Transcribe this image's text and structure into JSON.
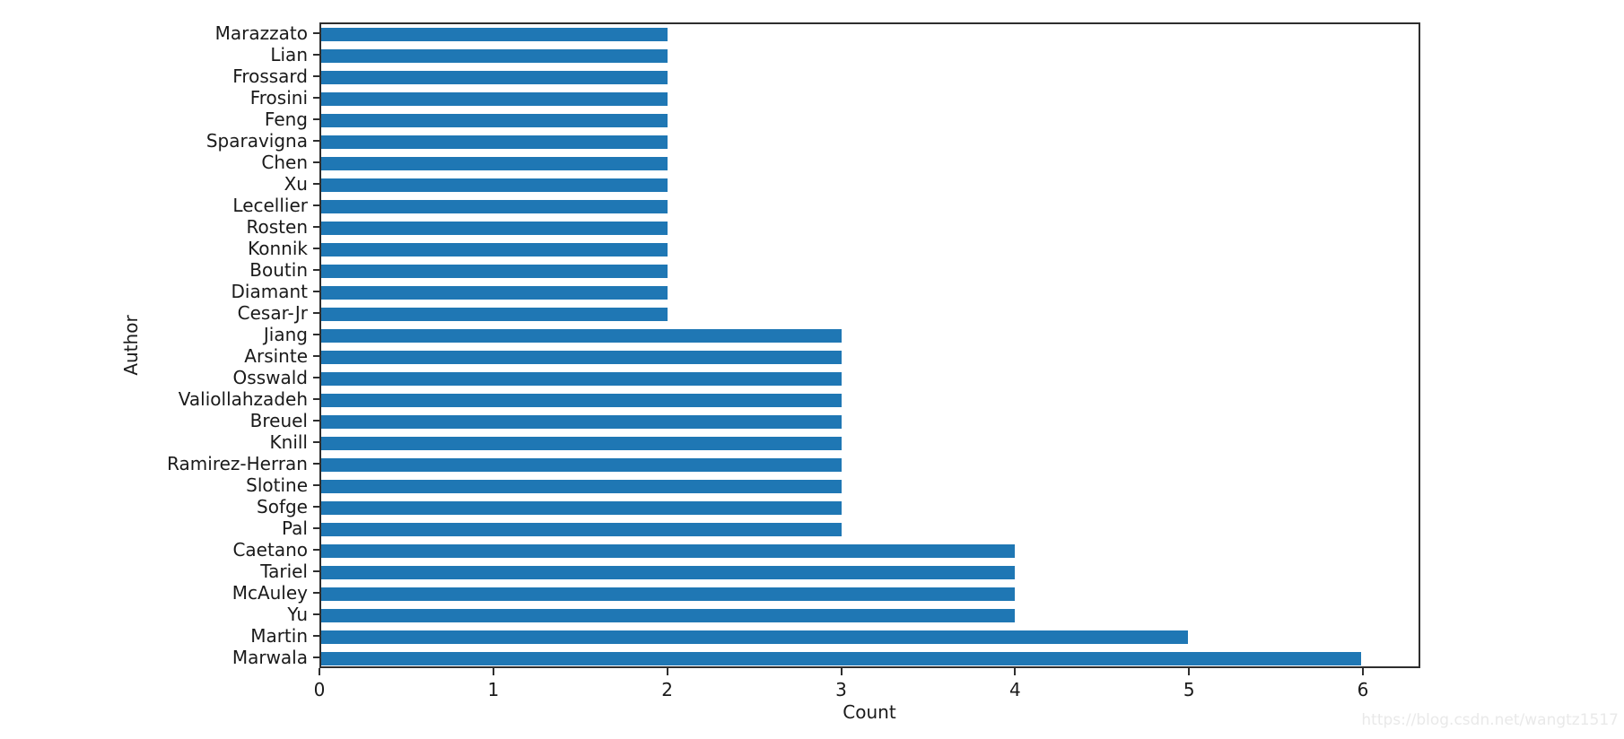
{
  "figure": {
    "background": "#ffffff",
    "watermark": "https://blog.csdn.net/wangtz1517"
  },
  "chart_data": {
    "type": "bar",
    "orientation": "horizontal",
    "title": "",
    "xlabel": "Count",
    "ylabel": "Author",
    "xlim": [
      0,
      6.33
    ],
    "x_ticks": [
      0,
      1,
      2,
      3,
      4,
      5,
      6
    ],
    "grid": false,
    "legend": false,
    "bar_color": "#1f77b4",
    "spine_color": "#2e2e2e",
    "text_color": "#1a1a1a",
    "categories": [
      "Marazzato",
      "Lian",
      "Frossard",
      "Frosini",
      "Feng",
      "Sparavigna",
      "Chen",
      "Xu",
      "Lecellier",
      "Rosten",
      "Konnik",
      "Boutin",
      "Diamant",
      "Cesar-Jr",
      "Jiang",
      "Arsinte",
      "Osswald",
      "Valiollahzadeh",
      "Breuel",
      "Knill",
      "Ramirez-Herran",
      "Slotine",
      "Sofge",
      "Pal",
      "Caetano",
      "Tariel",
      "McAuley",
      "Yu",
      "Martin",
      "Marwala"
    ],
    "values": [
      2,
      2,
      2,
      2,
      2,
      2,
      2,
      2,
      2,
      2,
      2,
      2,
      2,
      2,
      3,
      3,
      3,
      3,
      3,
      3,
      3,
      3,
      3,
      3,
      4,
      4,
      4,
      4,
      5,
      6
    ]
  }
}
